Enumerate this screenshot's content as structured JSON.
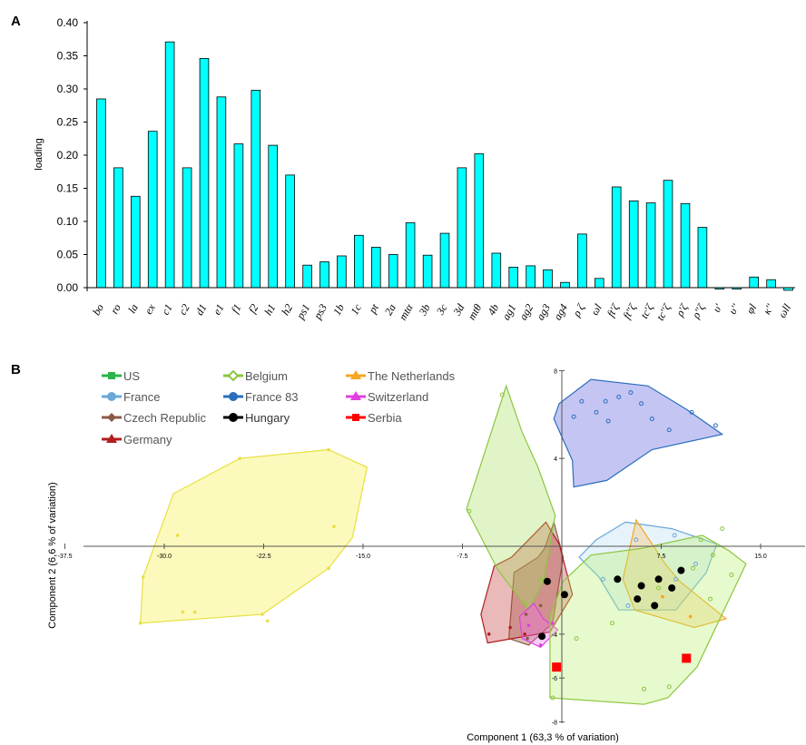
{
  "chart_data": [
    {
      "panel": "A",
      "type": "bar",
      "ylabel": "loading",
      "ylim": [
        0,
        0.4
      ],
      "yticks": [
        "0.00",
        "0.05",
        "0.10",
        "0.15",
        "0.20",
        "0.25",
        "0.30",
        "0.35",
        "0.40"
      ],
      "bar_color": "#00FFFF",
      "categories": [
        "bo",
        "ro",
        "la",
        "ex",
        "c1",
        "c2",
        "d1",
        "e1",
        "f1",
        "f2",
        "h1",
        "h2",
        "ps1",
        "ps3",
        "1b",
        "1c",
        "pt",
        "2a",
        "mtα",
        "3b",
        "3c",
        "3d",
        "mtθ",
        "4b",
        "ag1",
        "ag2",
        "ag3",
        "ag4",
        "ρ ζ",
        "ωl",
        "ft'ζ",
        "ft''ζ",
        "tc'ζ",
        "tc''ζ",
        "ρ'ζ",
        "ρ''ζ",
        "υ'",
        "υ''",
        "φl",
        "κ''",
        "ωll"
      ],
      "values": [
        0.285,
        0.181,
        0.138,
        0.236,
        0.371,
        0.181,
        0.346,
        0.288,
        0.217,
        0.298,
        0.215,
        0.17,
        0.034,
        0.039,
        0.048,
        0.079,
        0.061,
        0.05,
        0.098,
        0.049,
        0.082,
        0.181,
        0.202,
        0.052,
        0.031,
        0.033,
        0.027,
        0.008,
        0.081,
        0.014,
        0.152,
        0.131,
        0.128,
        0.162,
        0.127,
        0.091,
        -0.002,
        -0.002,
        0.016,
        0.012,
        -0.004
      ]
    },
    {
      "panel": "B",
      "type": "scatter",
      "xlabel": "Component 1 (63,3 % of variation)",
      "ylabel": "Component 2 (6,6 % of variation)",
      "xlim": [
        -40,
        18
      ],
      "ylim": [
        -8,
        8
      ],
      "xticks": [
        "-37.5",
        "-30.0",
        "-22.5",
        "-15.0",
        "-7.5",
        "7.5",
        "15.0"
      ],
      "yticks": [
        "8",
        "4",
        "-4",
        "-6",
        "-8"
      ],
      "legend_position": "top-left",
      "series": [
        {
          "name": "US",
          "color": "#2DB34A",
          "marker": "square",
          "fill": "#4CAF50",
          "hull": [],
          "points": []
        },
        {
          "name": "France",
          "color": "#6BA8D8",
          "marker": "circle",
          "fill": "#B8DDF0",
          "hull": [
            [
              4.8,
              1.1
            ],
            [
              8.3,
              0.8
            ],
            [
              11.7,
              0.1
            ],
            [
              10.9,
              -1.2
            ],
            [
              8.6,
              -2.9
            ],
            [
              4.3,
              -2.9
            ],
            [
              2.8,
              -1.4
            ],
            [
              1.3,
              -0.5
            ],
            [
              2.6,
              0.3
            ]
          ],
          "points": [
            [
              5.6,
              0.3
            ],
            [
              8.5,
              0.5
            ],
            [
              10.1,
              -0.8
            ],
            [
              8.6,
              -1.5
            ],
            [
              5.0,
              -2.7
            ],
            [
              6.1,
              -1.8
            ],
            [
              3.1,
              -1.5
            ]
          ]
        },
        {
          "name": "Czech Republic",
          "color": "#8A5A44",
          "marker": "diamond",
          "fill": "#8B4A3A",
          "hull": [
            [
              -0.6,
              1.1
            ],
            [
              0.1,
              -0.5
            ],
            [
              -0.7,
              -3.5
            ],
            [
              -2.5,
              -4.5
            ],
            [
              -4.0,
              -4.2
            ],
            [
              -3.6,
              -1.2
            ],
            [
              -1.8,
              -0.5
            ],
            [
              -1.3,
              -0.1
            ]
          ],
          "points": [
            [
              -1.6,
              -2.7
            ],
            [
              -2.6,
              -4.2
            ],
            [
              -2.7,
              -3.1
            ]
          ]
        },
        {
          "name": "Germany",
          "color": "#B01E1E",
          "marker": "triangle",
          "fill": "#C23A3A",
          "hull": [
            [
              -1.2,
              1.1
            ],
            [
              -0.2,
              0.1
            ],
            [
              0.8,
              -2.2
            ],
            [
              -0.9,
              -3.9
            ],
            [
              -5.6,
              -4.4
            ],
            [
              -6.1,
              -3.1
            ],
            [
              -5.1,
              -0.9
            ],
            [
              -3.8,
              -0.5
            ]
          ],
          "points": [
            [
              -5.5,
              -4.0
            ],
            [
              -3.9,
              -3.7
            ],
            [
              -2.8,
              -4.0
            ]
          ]
        },
        {
          "name": "Belgium",
          "color": "#8CC63F",
          "marker": "open-diamond",
          "fill": "#A8E060",
          "hull": [
            [
              -7.2,
              1.7
            ],
            [
              -4.2,
              7.3
            ],
            [
              -3.0,
              5.2
            ],
            [
              -1.8,
              3.6
            ],
            [
              -0.5,
              1.4
            ],
            [
              -1.4,
              -1.6
            ],
            [
              -2.5,
              -2.9
            ],
            [
              -4.8,
              -1.1
            ]
          ],
          "points": [
            [
              -4.5,
              6.9
            ],
            [
              -7.0,
              1.6
            ],
            [
              -2.8,
              -2.6
            ],
            [
              -1.6,
              -1.5
            ]
          ]
        },
        {
          "name": "The Netherlands",
          "color": "#F5A623",
          "marker": "triangle",
          "fill": "#F8C060",
          "hull": [
            [
              5.6,
              1.2
            ],
            [
              7.8,
              -0.8
            ],
            [
              8.9,
              -1.6
            ],
            [
              12.4,
              -3.3
            ],
            [
              10.0,
              -3.7
            ],
            [
              5.5,
              -2.9
            ],
            [
              4.6,
              -1.5
            ]
          ],
          "points": [
            [
              7.6,
              -2.3
            ],
            [
              9.7,
              -3.2
            ]
          ]
        },
        {
          "name": "France 83",
          "color": "#2A6EBB",
          "marker": "circle",
          "fill": "#5A5AE0",
          "hull": [
            [
              0.8,
              3.9
            ],
            [
              -0.6,
              5.8
            ],
            [
              -0.2,
              6.5
            ],
            [
              2.2,
              7.6
            ],
            [
              6.5,
              7.3
            ],
            [
              9.5,
              6.2
            ],
            [
              12.1,
              5.1
            ],
            [
              6.8,
              4.4
            ],
            [
              3.4,
              3.0
            ],
            [
              0.9,
              2.7
            ]
          ],
          "points": [
            [
              0.9,
              5.9
            ],
            [
              1.5,
              6.6
            ],
            [
              2.6,
              6.1
            ],
            [
              3.3,
              6.6
            ],
            [
              4.3,
              6.8
            ],
            [
              5.2,
              7.0
            ],
            [
              6.0,
              6.5
            ],
            [
              6.8,
              5.8
            ],
            [
              8.1,
              5.3
            ],
            [
              9.8,
              6.1
            ],
            [
              11.6,
              5.5
            ],
            [
              3.5,
              5.7
            ]
          ]
        },
        {
          "name": "Switzerland",
          "color": "#E040E0",
          "marker": "triangle",
          "fill": "#F070F0",
          "hull": [
            [
              -2.1,
              -2.6
            ],
            [
              -1.4,
              -3.3
            ],
            [
              -0.3,
              -3.8
            ],
            [
              -1.6,
              -4.6
            ],
            [
              -3.0,
              -4.2
            ],
            [
              -3.2,
              -3.2
            ]
          ],
          "points": [
            [
              -2.5,
              -3.6
            ],
            [
              -1.6,
              -4.5
            ],
            [
              -0.7,
              -3.5
            ]
          ]
        },
        {
          "name": "Hungary",
          "color": "#000000",
          "marker": "circle",
          "fill": "#000000",
          "hull": [],
          "points": [
            [
              -1.1,
              -1.6
            ],
            [
              0.2,
              -2.2
            ],
            [
              -1.5,
              -4.1
            ],
            [
              5.7,
              -2.4
            ],
            [
              7.0,
              -2.7
            ],
            [
              8.3,
              -1.9
            ],
            [
              6.0,
              -1.8
            ],
            [
              4.2,
              -1.5
            ],
            [
              7.3,
              -1.5
            ],
            [
              9.0,
              -1.1
            ]
          ]
        },
        {
          "name": "Serbia",
          "color": "#FF0000",
          "marker": "square",
          "fill": "#FF0000",
          "hull": [],
          "points": [
            [
              -0.4,
              -5.5
            ],
            [
              9.4,
              -5.1
            ]
          ]
        },
        {
          "name": "",
          "color": "#E8E040",
          "marker": "circle",
          "fill": "#F6EE40",
          "hull": [
            [
              -31.6,
              -1.4
            ],
            [
              -29.3,
              2.4
            ],
            [
              -24.3,
              4.0
            ],
            [
              -17.6,
              4.4
            ],
            [
              -14.7,
              3.6
            ],
            [
              -15.8,
              0.4
            ],
            [
              -17.6,
              -1.0
            ],
            [
              -22.6,
              -3.1
            ],
            [
              -31.8,
              -3.5
            ]
          ],
          "points": [
            [
              -31.6,
              -1.4
            ],
            [
              -29.0,
              0.5
            ],
            [
              -24.3,
              4.0
            ],
            [
              -17.6,
              4.4
            ],
            [
              -17.2,
              0.9
            ],
            [
              -17.6,
              -1.0
            ],
            [
              -22.2,
              -3.4
            ],
            [
              -22.6,
              -3.1
            ],
            [
              -27.7,
              -3.0
            ],
            [
              -31.8,
              -3.5
            ],
            [
              -28.6,
              -3.0
            ]
          ]
        },
        {
          "name": "",
          "color": "#8CC63F",
          "marker": "open-diamond",
          "fill": "#B6F070",
          "hull": [
            [
              2.2,
              -0.4
            ],
            [
              6.0,
              -0.1
            ],
            [
              10.6,
              0.5
            ],
            [
              12.6,
              -0.2
            ],
            [
              13.9,
              -0.8
            ],
            [
              10.2,
              -5.5
            ],
            [
              8.0,
              -6.9
            ],
            [
              6.2,
              -7.2
            ],
            [
              -0.9,
              -6.9
            ],
            [
              -0.9,
              -3.2
            ],
            [
              0.1,
              -1.6
            ]
          ],
          "points": [
            [
              10.5,
              0.3
            ],
            [
              11.4,
              -0.4
            ],
            [
              12.1,
              0.8
            ],
            [
              12.8,
              -1.3
            ],
            [
              9.9,
              -1.0
            ],
            [
              11.2,
              -2.4
            ],
            [
              7.3,
              -1.9
            ],
            [
              8.1,
              -6.4
            ],
            [
              -0.7,
              -6.9
            ],
            [
              1.1,
              -4.2
            ],
            [
              3.8,
              -3.5
            ],
            [
              6.2,
              -6.5
            ]
          ]
        }
      ]
    }
  ]
}
